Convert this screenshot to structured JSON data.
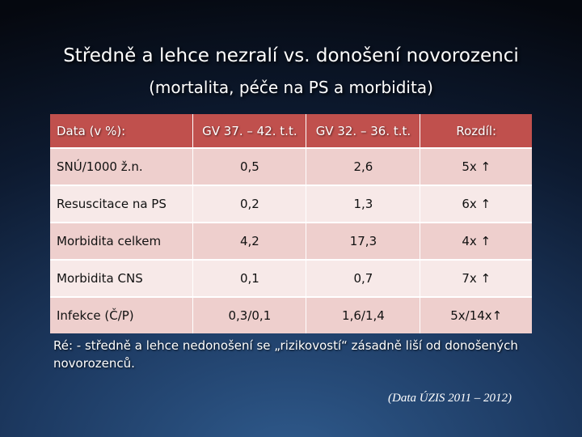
{
  "slide": {
    "title": "Středně a lehce nezralí vs. donošení novorozenci",
    "subtitle": "(mortalita, péče na PS a morbidita)"
  },
  "table": {
    "headers": [
      "Data (v %):",
      "GV 37. – 42. t.t.",
      "GV 32. – 36. t.t.",
      "Rozdíl:"
    ],
    "rows": [
      [
        "SNÚ/1000 ž.n.",
        "0,5",
        "2,6",
        "5x ↑"
      ],
      [
        "Resuscitace na PS",
        "0,2",
        "1,3",
        "6x ↑"
      ],
      [
        "Morbidita celkem",
        "4,2",
        "17,3",
        "4x ↑"
      ],
      [
        "Morbidita CNS",
        "0,1",
        "0,7",
        "7x ↑"
      ],
      [
        "Infekce (Č/P)",
        "0,3/0,1",
        "1,6/1,4",
        "5x/14x↑"
      ]
    ]
  },
  "note": "Ré: - středně a lehce nedonošení se „rizikovostí“ zásadně liší od donošených novorozenců.",
  "source": "(Data ÚZIS 2011 – 2012)"
}
